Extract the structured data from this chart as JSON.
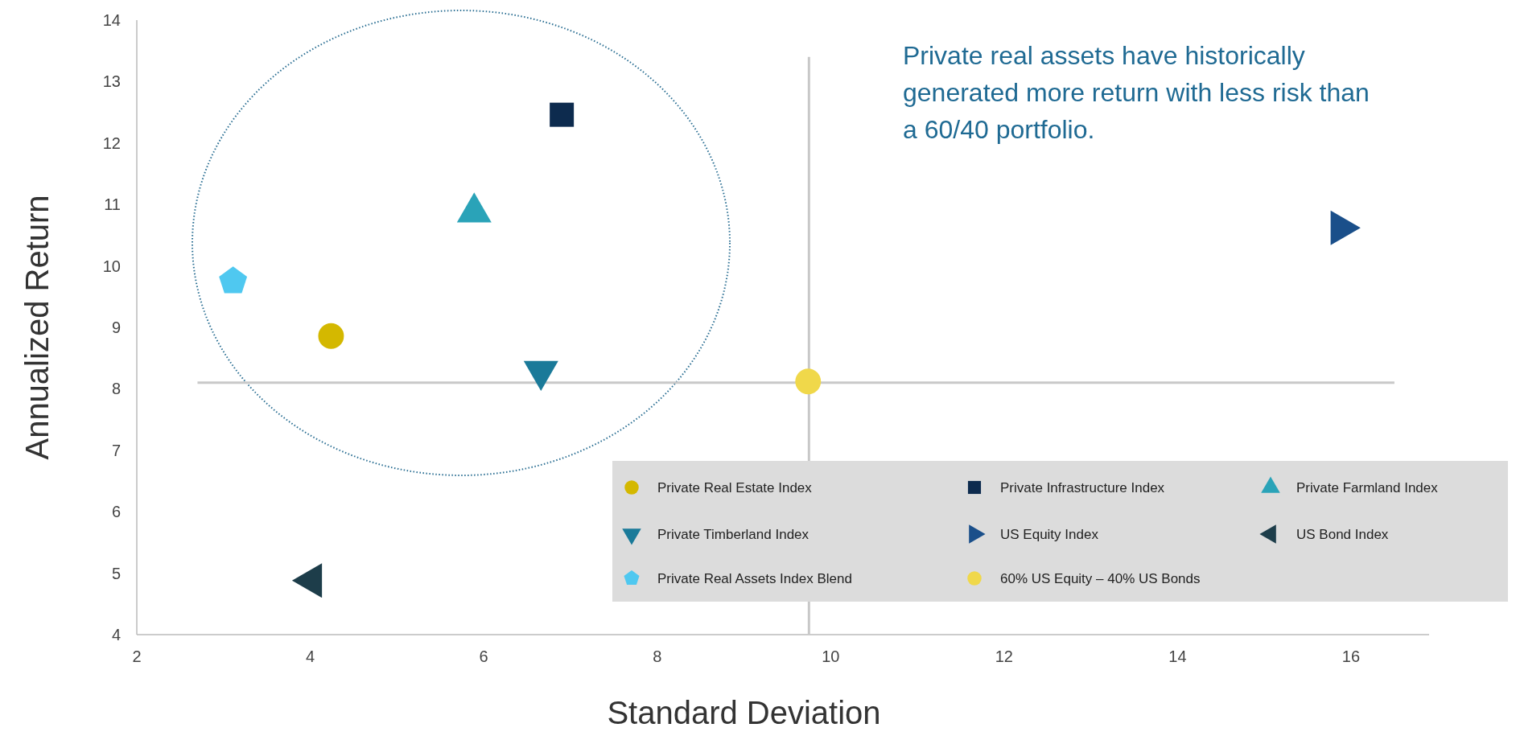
{
  "chart_data": {
    "type": "scatter",
    "xlabel": "Standard Deviation",
    "ylabel": "Annualized Return",
    "xlim": [
      2,
      16.9
    ],
    "ylim": [
      4,
      14
    ],
    "xticks": [
      2,
      4,
      6,
      8,
      10,
      12,
      14,
      16
    ],
    "yticks": [
      4,
      5,
      6,
      7,
      8,
      9,
      10,
      11,
      12,
      13,
      14
    ],
    "grid": false,
    "legend": "bottom right",
    "annotations": [
      "Private real assets have historically generated more return with less risk than a 60/40 portfolio."
    ],
    "ref_lines": [
      {
        "axis": "y",
        "value": 8.1,
        "color": "#c8c8c8"
      },
      {
        "axis": "x",
        "value": 9.75,
        "color": "#c8c8c8"
      }
    ],
    "series": [
      {
        "name": "Private Real Estate Index",
        "color": "#d4b800",
        "marker": "circle",
        "x": [
          4.24
        ],
        "values": [
          8.86
        ]
      },
      {
        "name": "Private Infrastructure Index",
        "color": "#0d2b4e",
        "marker": "square",
        "x": [
          6.9
        ],
        "values": [
          12.46
        ]
      },
      {
        "name": "Private Farmland Index",
        "color": "#2aa3b8",
        "marker": "triangle",
        "x": [
          5.89
        ],
        "values": [
          10.87
        ]
      },
      {
        "name": "Private Timberland Index",
        "color": "#1a7a99",
        "marker": "triangle-down",
        "x": [
          6.66
        ],
        "values": [
          8.29
        ]
      },
      {
        "name": "US Equity Index",
        "color": "#1a4f8a",
        "marker": "triangle-right",
        "x": [
          15.88
        ],
        "values": [
          10.62
        ]
      },
      {
        "name": "US Bond Index",
        "color": "#1d3d4a",
        "marker": "triangle-left",
        "x": [
          4.02
        ],
        "values": [
          4.88
        ]
      },
      {
        "name": "Private Real Assets Index Blend",
        "color": "#4fc8f0",
        "x": [
          3.11
        ],
        "values": [
          9.75
        ]
      },
      {
        "name": "60% US Equity – 40% US Bonds",
        "color": "#f0d84a",
        "marker": "circle",
        "x": [
          9.74
        ],
        "values": [
          8.12
        ]
      }
    ]
  }
}
